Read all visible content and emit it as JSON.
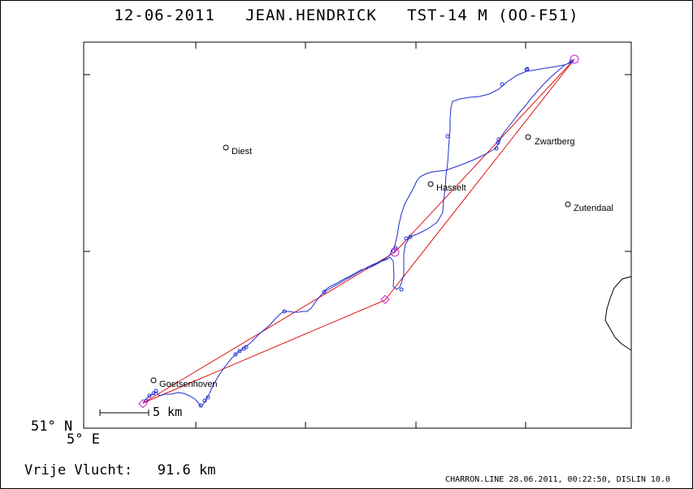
{
  "header": {
    "date": "12-06-2011",
    "pilot": "JEAN.HENDRICK",
    "glider": "TST-14 M (OO-F51)"
  },
  "axes": {
    "lat_label": "51° N",
    "lon_label": "5° E"
  },
  "scale": {
    "label": "5 km"
  },
  "flight": {
    "label": "Vrije Vlucht:",
    "distance": "91.6 km"
  },
  "footer": {
    "text": "CHARRON.LINE 28.06.2011, 00:22:50, DISLIN 10.0"
  },
  "places": [
    {
      "name": "Diest"
    },
    {
      "name": "Hasselt"
    },
    {
      "name": "Zwartberg"
    },
    {
      "name": "Zutendaal"
    },
    {
      "name": "Goetsenhoven"
    }
  ],
  "colors": {
    "track": "#1f2fd0",
    "task": "#e01010",
    "turnpoint": "#d020d0",
    "frame": "#000000"
  },
  "icons": {
    "place_marker": "circle-icon",
    "turnpoint_marker": "circle-icon",
    "start_marker": "diamond-icon"
  }
}
